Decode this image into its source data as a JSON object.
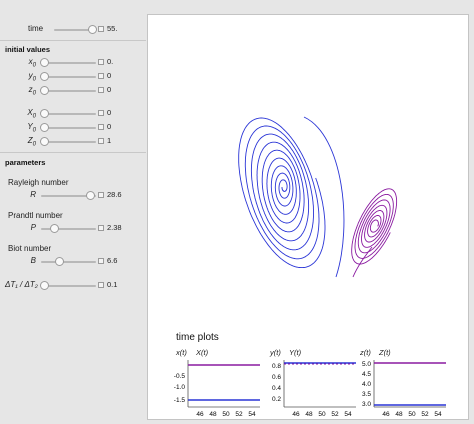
{
  "controls": {
    "time": {
      "label": "time",
      "value": "55.",
      "fraction": 0.9
    },
    "initial_title": "initial values",
    "x0": {
      "label": "x",
      "sub": "0",
      "value": "0.",
      "fraction": 0.0
    },
    "y0": {
      "label": "y",
      "sub": "0",
      "value": "0",
      "fraction": 0.0
    },
    "z0": {
      "label": "z",
      "sub": "0",
      "value": "0",
      "fraction": 0.0
    },
    "X0": {
      "label": "X",
      "sub": "0",
      "value": "0",
      "fraction": 0.0
    },
    "Y0": {
      "label": "Y",
      "sub": "0",
      "value": "0",
      "fraction": 0.0
    },
    "Z0": {
      "label": "Z",
      "sub": "0",
      "value": "1",
      "fraction": 0.0
    },
    "params_title": "parameters",
    "rayleigh": {
      "caption": "Rayleigh number",
      "label": "R",
      "value": "28.6",
      "fraction": 0.9
    },
    "prandtl": {
      "caption": "Prandtl number",
      "label": "P",
      "value": "2.38",
      "fraction": 0.2
    },
    "biot": {
      "caption": "Biot number",
      "label": "B",
      "value": "6.6",
      "fraction": 0.3
    },
    "ratio": {
      "label": "ΔT₁ / ΔT₂",
      "value": "0.1",
      "fraction": 0.0
    }
  },
  "time_plots": {
    "title": "time plots",
    "plots": [
      {
        "label_a": "x(t)",
        "label_b": "X(t)",
        "yticks": [
          "-0.5",
          "-1.0",
          "-1.5"
        ],
        "xticks": [
          "46",
          "48",
          "50",
          "52",
          "54"
        ]
      },
      {
        "label_a": "y(t)",
        "label_b": "Y(t)",
        "yticks": [
          "0.8",
          "0.6",
          "0.4",
          "0.2"
        ],
        "xticks": [
          "46",
          "48",
          "50",
          "52",
          "54"
        ]
      },
      {
        "label_a": "z(t)",
        "label_b": "Z(t)",
        "yticks": [
          "5.0",
          "4.5",
          "4.0",
          "3.5",
          "3.0"
        ],
        "xticks": [
          "46",
          "48",
          "50",
          "52",
          "54"
        ]
      }
    ]
  },
  "colors": {
    "series_a": "#2a35d6",
    "series_b": "#8a1aa0",
    "panel_bg": "#e6e6e6"
  }
}
